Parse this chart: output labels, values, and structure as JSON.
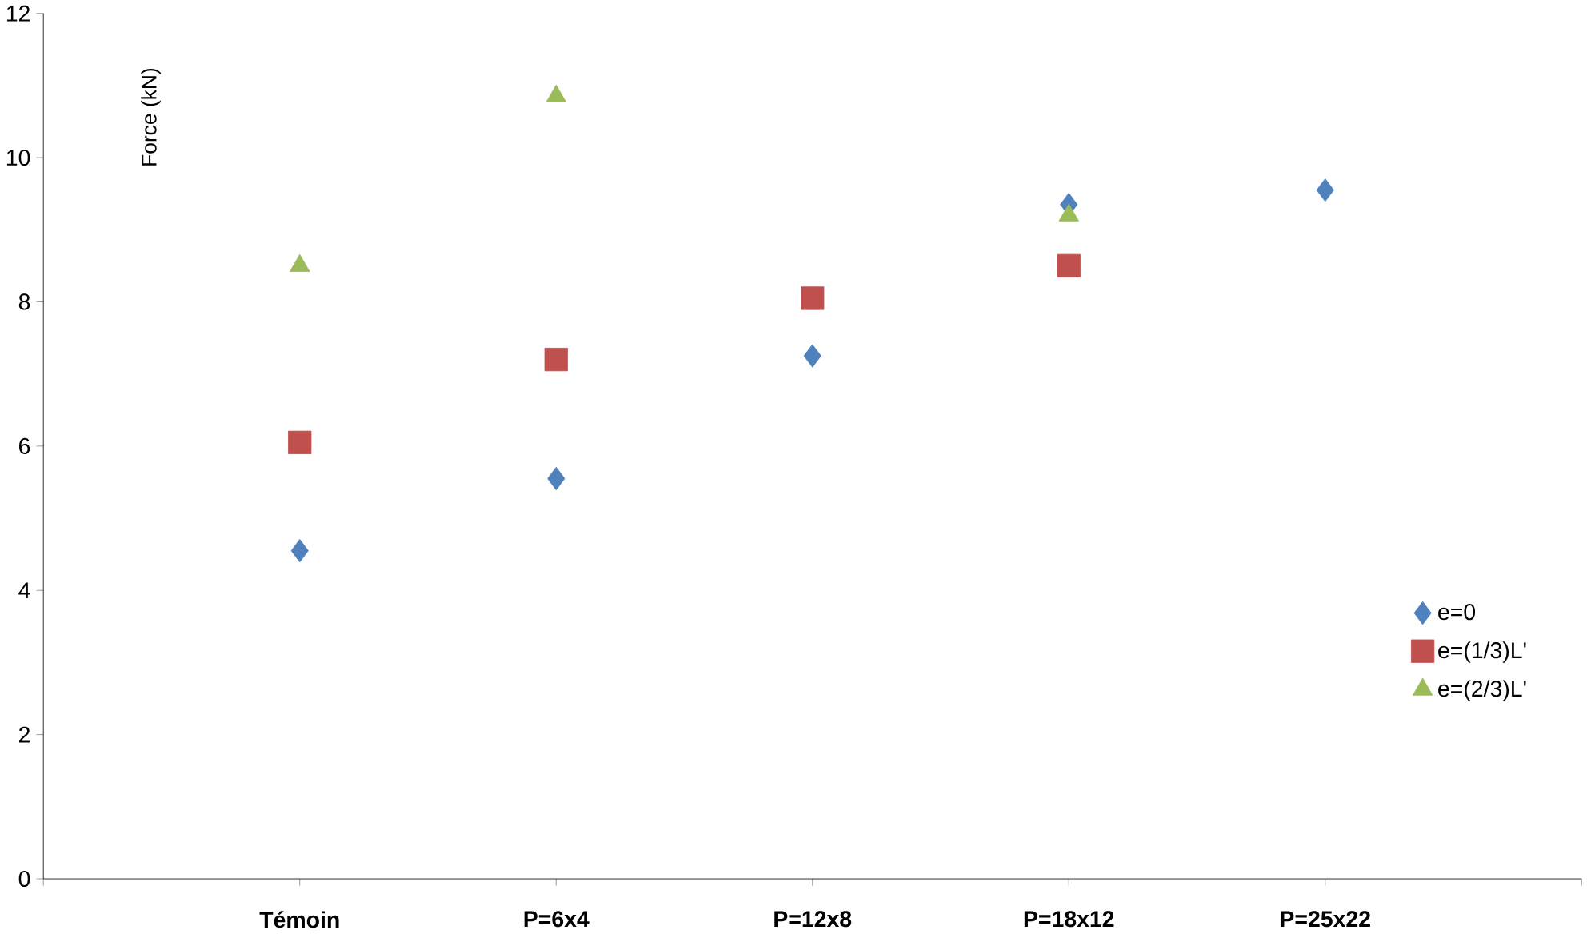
{
  "chart_data": {
    "type": "scatter",
    "ylabel": "Force (kN)",
    "categories": [
      "Témoin",
      "P=6x4",
      "P=12x8",
      "P=18x12",
      "P=25x22"
    ],
    "ylim": [
      0,
      12
    ],
    "yticks": [
      0,
      2,
      4,
      6,
      8,
      10,
      12
    ],
    "grid": false,
    "legend": "right",
    "series": [
      {
        "name": "e=0",
        "color": "#4f81bd",
        "marker": "diamond",
        "values": [
          4.55,
          5.55,
          7.25,
          9.35,
          9.55
        ]
      },
      {
        "name": "e=(1/3)L'",
        "color": "#c0504d",
        "marker": "square",
        "values": [
          6.05,
          7.2,
          8.05,
          8.5,
          null
        ]
      },
      {
        "name": "e=(2/3)L'",
        "color": "#9bbb59",
        "marker": "triangle",
        "values": [
          8.5,
          10.85,
          null,
          9.2,
          null
        ]
      }
    ]
  }
}
